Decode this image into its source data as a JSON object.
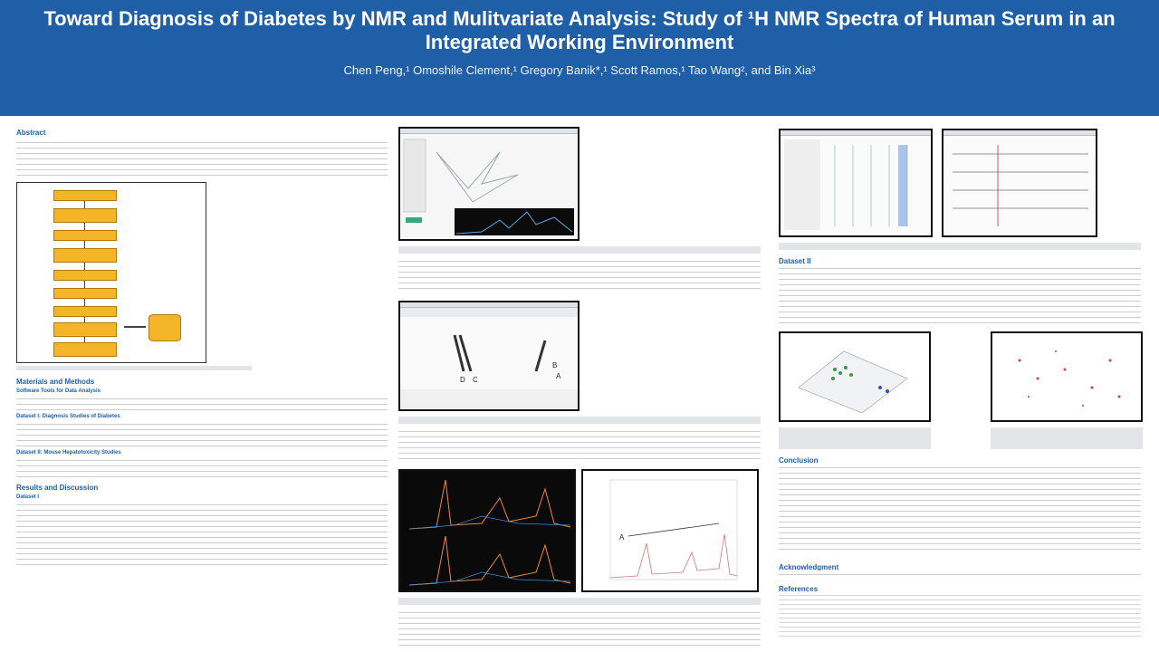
{
  "header": {
    "title": "Toward Diagnosis of Diabetes by NMR and Mulitvariate Analysis: Study of ¹H NMR Spectra of Human Serum in an Integrated Working Environment",
    "authors": "Chen Peng,¹ Omoshile Clement,¹ Gregory Banik*,¹ Scott Ramos,¹ Tao Wang², and Bin Xia³"
  },
  "col1": {
    "abstract_title": "Abstract",
    "materials_title": "Materials and Methods",
    "software_sub": "Software Tools for Data Analysis",
    "dataset1_sub": "Dataset I: Diagnosis Studies of Diabetes",
    "dataset2_sub": "Dataset II: Mouse Hepatotoxicity Studies",
    "results_title": "Results and Discussion",
    "results_sub": "Dataset I"
  },
  "col3": {
    "dataset2_title": "Dataset II",
    "conclusion_title": "Conclusion",
    "ack_title": "Acknowledgment",
    "refs_title": "References"
  },
  "figures": {
    "peak_label_a": "A",
    "peak_label_b": "B",
    "peak_label_c": "C",
    "peak_label_d": "D"
  },
  "colors": {
    "header": "#1f5fa8",
    "accent": "#f4b528"
  }
}
